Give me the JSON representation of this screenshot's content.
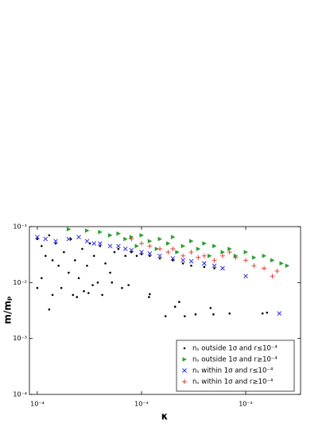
{
  "chart_data": {
    "type": "scatter",
    "xlabel": "κ",
    "ylabel": "m/mₚ",
    "xscale": "log",
    "yscale": "log",
    "xlim": [
      8.4e-05,
      0.0336
    ],
    "ylim": [
      0.0001,
      0.1
    ],
    "xticks": [
      {
        "value": 0.0001,
        "label": "10⁻⁴"
      },
      {
        "value": 0.001,
        "label": "10⁻³"
      },
      {
        "value": 0.01,
        "label": "10⁻²"
      }
    ],
    "yticks": [
      {
        "value": 0.0001,
        "label": "10⁻⁴"
      },
      {
        "value": 0.001,
        "label": "10⁻³"
      },
      {
        "value": 0.01,
        "label": "10⁻²"
      },
      {
        "value": 0.1,
        "label": "10⁻¹"
      }
    ],
    "legend": "lower right",
    "series": [
      {
        "name": "nₛ outside 1σ and r≤10⁻⁴",
        "color": "#000000",
        "marker": "dot",
        "x": [
          0.0001,
          0.00011,
          0.00012,
          0.00013,
          0.00014,
          0.00015,
          0.00016,
          0.00018,
          0.0002,
          0.00021,
          0.00023,
          0.00025,
          0.00027,
          0.0003,
          0.00032,
          0.00035,
          0.00038,
          0.0004,
          0.00045,
          0.0005,
          0.00055,
          0.0006,
          0.0007,
          0.0008,
          0.0009,
          0.001,
          0.0012,
          0.0015,
          0.002,
          0.0025,
          0.003,
          0.004,
          0.005,
          0.00013,
          0.00118,
          0.0012,
          0.0017,
          0.0021,
          0.0023,
          0.0026,
          0.0033,
          0.0046,
          0.0049,
          0.007,
          0.0145,
          0.016,
          0.00011,
          0.00017,
          0.00022,
          0.00028,
          0.00034,
          0.00042,
          0.00052,
          0.00065,
          0.00075,
          0.0001,
          0.00014,
          0.00024,
          0.00031
        ],
        "values": [
          0.06,
          0.045,
          0.03,
          0.07,
          0.025,
          0.05,
          0.02,
          0.035,
          0.015,
          0.06,
          0.025,
          0.012,
          0.04,
          0.02,
          0.05,
          0.03,
          0.01,
          0.045,
          0.022,
          0.015,
          0.035,
          0.04,
          0.03,
          0.035,
          0.03,
          0.032,
          0.03,
          0.027,
          0.025,
          0.022,
          0.02,
          0.019,
          0.018,
          0.0033,
          0.0055,
          0.0062,
          0.0025,
          0.0037,
          0.0045,
          0.0025,
          0.0027,
          0.0035,
          0.0027,
          0.0028,
          0.0028,
          0.0029,
          0.012,
          0.008,
          0.006,
          0.007,
          0.009,
          0.006,
          0.01,
          0.008,
          0.009,
          0.008,
          0.006,
          0.0055,
          0.0065
        ]
      },
      {
        "name": "nₛ outside 1σ and r≥10⁻⁴",
        "color": "#2ca02c",
        "marker": "triangle-right",
        "x": [
          0.0002,
          0.0003,
          0.0004,
          0.0005,
          0.0006,
          0.0007,
          0.0008,
          0.001,
          0.0012,
          0.0015,
          0.0018,
          0.002,
          0.0025,
          0.003,
          0.0035,
          0.004,
          0.005,
          0.006,
          0.007,
          0.008,
          0.01,
          0.012,
          0.015,
          0.018,
          0.022,
          0.025,
          0.0009,
          0.0014,
          0.0022,
          0.0045
        ],
        "values": [
          0.09,
          0.085,
          0.08,
          0.07,
          0.075,
          0.06,
          0.065,
          0.07,
          0.055,
          0.06,
          0.05,
          0.065,
          0.045,
          0.055,
          0.04,
          0.05,
          0.045,
          0.035,
          0.04,
          0.03,
          0.035,
          0.028,
          0.03,
          0.025,
          0.022,
          0.02,
          0.045,
          0.04,
          0.035,
          0.03
        ]
      },
      {
        "name": "nₛ within 1σ and r≤10⁻⁴",
        "color": "#1f1fdd",
        "marker": "x",
        "x": [
          0.0001,
          0.00012,
          0.00015,
          0.0002,
          0.00025,
          0.0003,
          0.00035,
          0.0004,
          0.0005,
          0.0006,
          0.0007,
          0.0008,
          0.001,
          0.0012,
          0.0015,
          0.002,
          0.0025,
          0.003,
          0.004,
          0.005,
          0.006,
          0.01,
          0.021
        ],
        "values": [
          0.065,
          0.06,
          0.055,
          0.06,
          0.065,
          0.055,
          0.05,
          0.05,
          0.045,
          0.045,
          0.04,
          0.038,
          0.035,
          0.033,
          0.03,
          0.027,
          0.025,
          0.024,
          0.022,
          0.02,
          0.018,
          0.013,
          0.0028
        ]
      },
      {
        "name": "nₛ within 1σ and r≥10⁻⁴",
        "color": "#e83030",
        "marker": "plus",
        "x": [
          0.0008,
          0.001,
          0.0012,
          0.0015,
          0.0018,
          0.002,
          0.0025,
          0.003,
          0.0035,
          0.004,
          0.005,
          0.006,
          0.007,
          0.008,
          0.01,
          0.012,
          0.015,
          0.018,
          0.02
        ],
        "values": [
          0.06,
          0.05,
          0.045,
          0.04,
          0.035,
          0.04,
          0.03,
          0.035,
          0.028,
          0.03,
          0.025,
          0.03,
          0.035,
          0.028,
          0.025,
          0.02,
          0.018,
          0.013,
          0.016
        ]
      }
    ]
  }
}
